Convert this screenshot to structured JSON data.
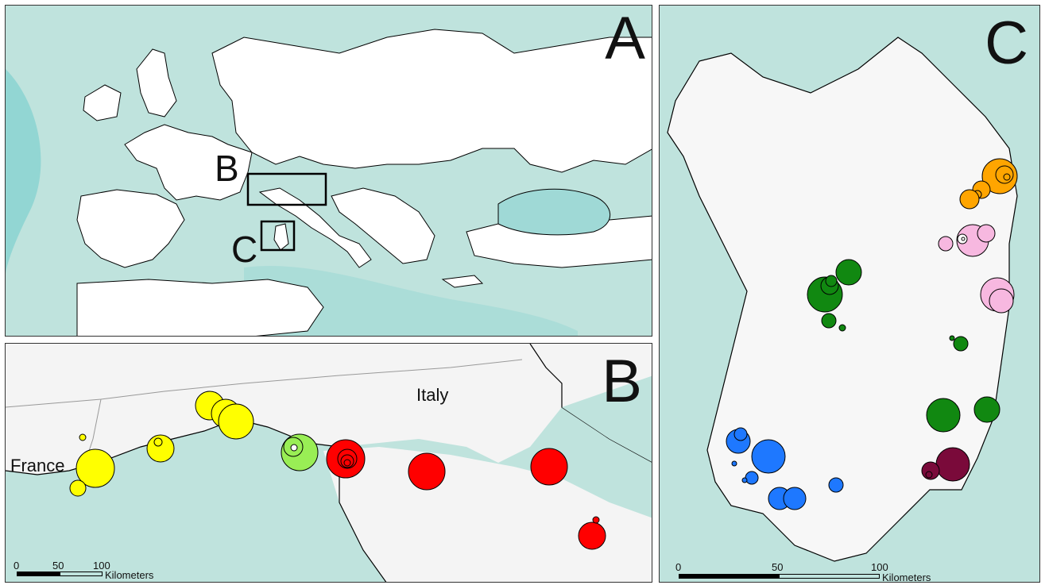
{
  "panels": {
    "a": {
      "letter": "A",
      "inset_labels": {
        "b": "B",
        "c": "C"
      }
    },
    "b": {
      "letter": "B",
      "countries": {
        "france": "France",
        "italy": "Italy"
      },
      "scale": {
        "ticks": [
          "0",
          "50",
          "100"
        ],
        "unit": "Kilometers"
      }
    },
    "c": {
      "letter": "C",
      "scale": {
        "ticks": [
          "0",
          "50",
          "100"
        ],
        "unit": "Kilometers"
      }
    }
  },
  "colors": {
    "sea": "#bfe3dd",
    "deep_sea": "#7fd0cf",
    "land": "#ffffff",
    "yellow": "#ffff00",
    "light_green": "#99ee55",
    "red": "#ff0000",
    "dark_green": "#118811",
    "blue": "#1e78ff",
    "orange": "#ffa500",
    "pink": "#f7b8e0",
    "maroon": "#7a0a3a"
  }
}
